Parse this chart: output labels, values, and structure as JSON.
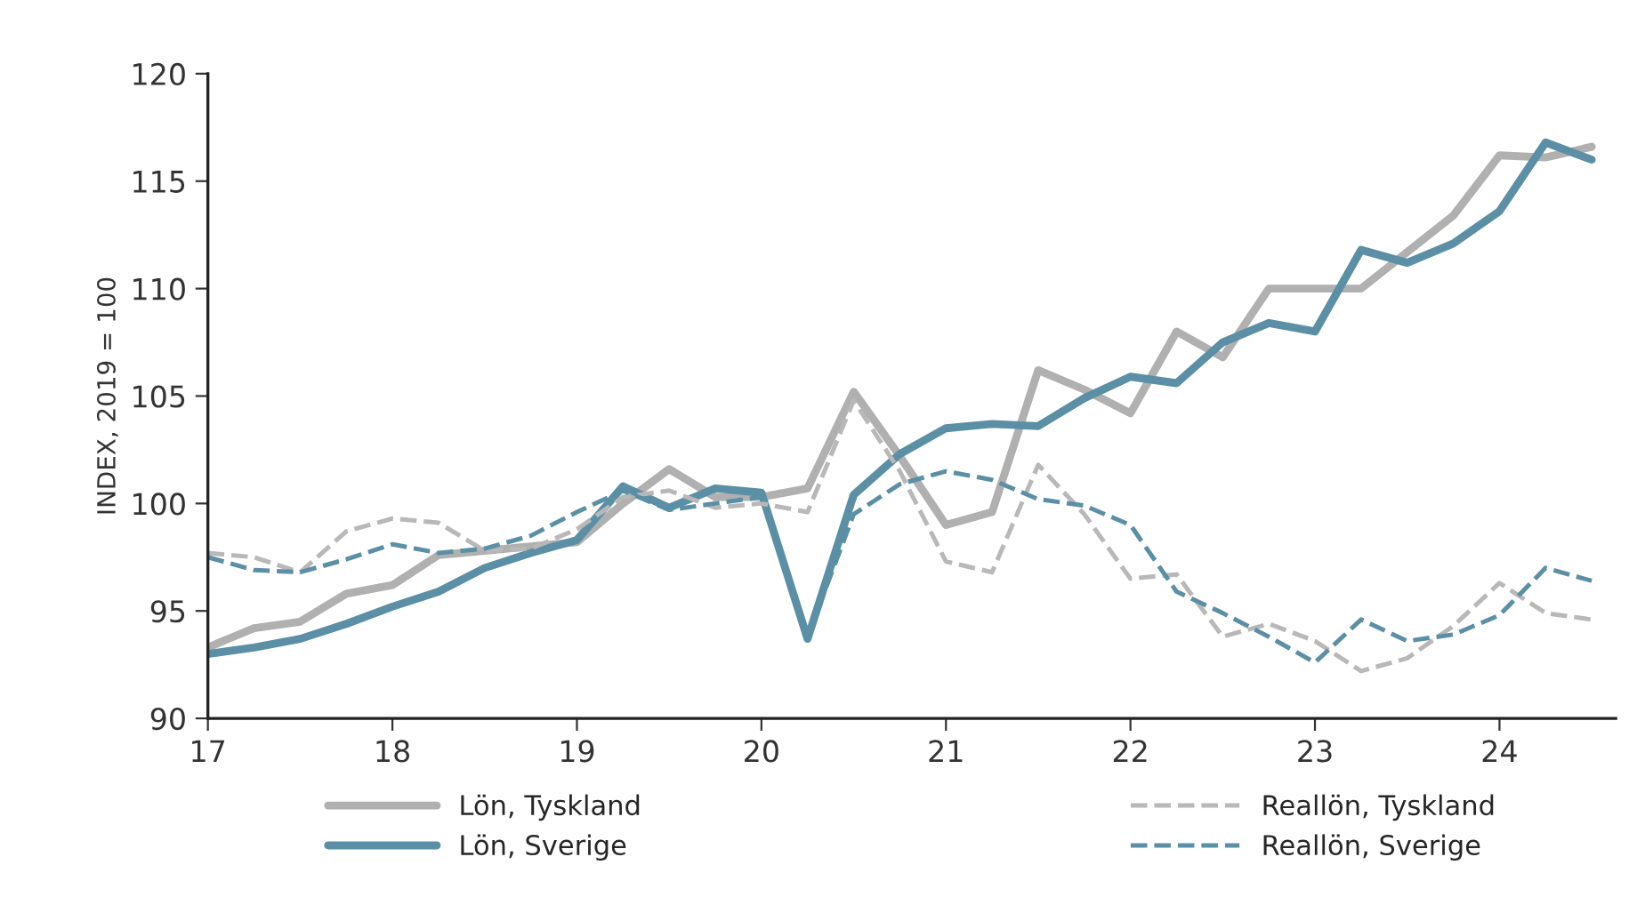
{
  "chart_data": {
    "type": "line",
    "ylabel": "INDEX, 2019 = 100",
    "x": [
      17,
      17.25,
      17.5,
      17.75,
      18,
      18.25,
      18.5,
      18.75,
      19,
      19.25,
      19.5,
      19.75,
      20,
      20.25,
      20.5,
      20.75,
      21,
      21.25,
      21.5,
      21.75,
      22,
      22.25,
      22.5,
      22.75,
      23,
      23.25,
      23.5,
      23.75,
      24,
      24.25,
      24.5
    ],
    "series": [
      {
        "name": "Lön, Tyskland",
        "color": "#b0b0b0",
        "line_style": "solid",
        "values": [
          93.3,
          94.2,
          94.5,
          95.8,
          96.2,
          97.6,
          97.8,
          98.0,
          98.2,
          100.0,
          101.6,
          100.3,
          100.3,
          100.7,
          105.2,
          102.2,
          99.0,
          99.6,
          106.2,
          105.3,
          104.2,
          108.0,
          106.8,
          110.0,
          110.0,
          110.0,
          111.7,
          113.4,
          116.2,
          116.1,
          116.6
        ]
      },
      {
        "name": "Lön, Sverige",
        "color": "#5b8fa5",
        "line_style": "solid",
        "values": [
          93.0,
          93.3,
          93.7,
          94.4,
          95.2,
          95.9,
          97.0,
          97.7,
          98.3,
          100.8,
          99.8,
          100.7,
          100.5,
          93.7,
          100.4,
          102.3,
          103.5,
          103.7,
          103.6,
          104.9,
          105.9,
          105.6,
          107.5,
          108.4,
          108.0,
          111.8,
          111.2,
          112.1,
          113.6,
          116.8,
          116.0
        ]
      },
      {
        "name": "Reallön, Tyskland",
        "color": "#b8b8b8",
        "line_style": "dashed",
        "values": [
          97.7,
          97.5,
          96.8,
          98.7,
          99.3,
          99.1,
          97.8,
          97.9,
          98.8,
          100.3,
          100.6,
          99.8,
          100.0,
          99.6,
          104.8,
          101.5,
          97.3,
          96.8,
          101.8,
          99.5,
          96.5,
          96.7,
          93.8,
          94.4,
          93.6,
          92.2,
          92.8,
          94.3,
          96.3,
          94.9,
          94.6
        ]
      },
      {
        "name": "Reallön, Sverige",
        "color": "#5b8fa5",
        "line_style": "dashed",
        "values": [
          97.5,
          96.9,
          96.8,
          97.4,
          98.1,
          97.7,
          97.9,
          98.5,
          99.6,
          100.6,
          99.7,
          100.0,
          100.3,
          93.8,
          99.5,
          100.9,
          101.5,
          101.1,
          100.2,
          99.9,
          99.0,
          95.9,
          94.9,
          93.8,
          92.6,
          94.6,
          93.6,
          93.9,
          94.8,
          97.0,
          96.4
        ]
      }
    ],
    "xlim": [
      17,
      24.63
    ],
    "xticks": [
      17,
      18,
      19,
      20,
      21,
      22,
      23,
      24
    ],
    "ylim": [
      90,
      120
    ],
    "yticks": [
      90,
      95,
      100,
      105,
      110,
      115,
      120
    ],
    "grid": false,
    "legend": "bottom",
    "marker": "none"
  }
}
